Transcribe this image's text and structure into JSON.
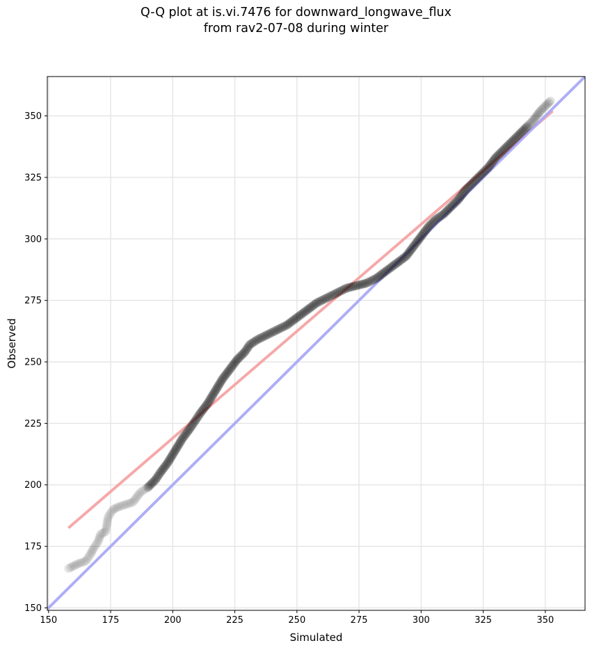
{
  "chart_data": {
    "type": "scatter",
    "title": "Q-Q plot at is.vi.7476 for downward_longwave_flux",
    "subtitle": "from rav2-07-08 during winter",
    "xlabel": "Simulated",
    "ylabel": "Observed",
    "xlim": [
      149.5,
      366
    ],
    "ylim": [
      149,
      366
    ],
    "xticks": [
      150,
      175,
      200,
      225,
      250,
      275,
      300,
      325,
      350
    ],
    "yticks": [
      150,
      175,
      200,
      225,
      250,
      275,
      300,
      325,
      350
    ],
    "grid": true,
    "series": [
      {
        "kind": "quantiles",
        "color": "#000000",
        "points": [
          [
            158,
            166
          ],
          [
            160,
            167
          ],
          [
            162,
            168
          ],
          [
            165,
            169
          ],
          [
            167,
            172
          ],
          [
            168,
            174
          ],
          [
            170,
            177
          ],
          [
            171,
            180
          ],
          [
            173,
            181
          ],
          [
            174,
            187
          ],
          [
            176,
            190
          ],
          [
            178,
            191
          ],
          [
            181,
            192
          ],
          [
            184,
            193
          ],
          [
            187,
            197
          ],
          [
            190,
            199
          ],
          [
            193,
            202
          ],
          [
            195,
            205
          ],
          [
            198,
            209
          ],
          [
            201,
            214
          ],
          [
            204,
            219
          ],
          [
            207,
            223
          ],
          [
            209,
            226
          ],
          [
            211,
            229
          ],
          [
            214,
            233
          ],
          [
            217,
            238
          ],
          [
            220,
            243
          ],
          [
            223,
            247
          ],
          [
            226,
            251
          ],
          [
            229,
            254
          ],
          [
            231,
            257
          ],
          [
            234,
            259
          ],
          [
            238,
            261
          ],
          [
            242,
            263
          ],
          [
            246,
            265
          ],
          [
            250,
            268
          ],
          [
            254,
            271
          ],
          [
            258,
            274
          ],
          [
            262,
            276
          ],
          [
            266,
            278
          ],
          [
            270,
            280
          ],
          [
            274,
            281
          ],
          [
            278,
            282
          ],
          [
            282,
            284
          ],
          [
            286,
            287
          ],
          [
            290,
            290
          ],
          [
            294,
            293
          ],
          [
            297,
            297
          ],
          [
            300,
            301
          ],
          [
            303,
            305
          ],
          [
            306,
            308
          ],
          [
            309,
            310
          ],
          [
            312,
            313
          ],
          [
            315,
            316
          ],
          [
            318,
            320
          ],
          [
            321,
            323
          ],
          [
            324,
            326
          ],
          [
            327,
            329
          ],
          [
            330,
            333
          ],
          [
            333,
            336
          ],
          [
            336,
            339
          ],
          [
            339,
            342
          ],
          [
            342,
            345
          ],
          [
            345,
            348
          ],
          [
            348,
            352
          ],
          [
            350,
            354
          ],
          [
            352,
            356
          ]
        ]
      },
      {
        "kind": "fit-line",
        "color": "#f4a4a4",
        "points": [
          [
            158,
            182.5
          ],
          [
            353,
            352
          ]
        ]
      },
      {
        "kind": "identity-line",
        "color": "#aaaaf5",
        "points": [
          [
            149.5,
            149.5
          ],
          [
            366,
            366
          ]
        ]
      }
    ]
  }
}
